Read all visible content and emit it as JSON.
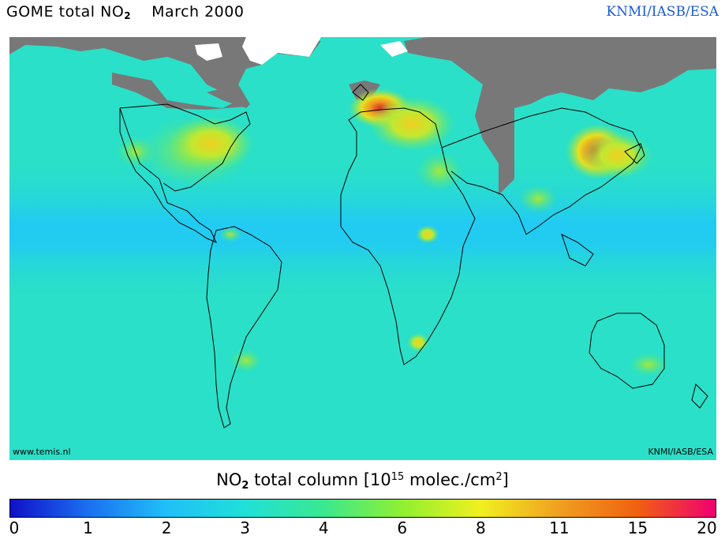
{
  "title": {
    "main_prefix": "GOME total NO",
    "main_sub": "2",
    "month": "March 2000"
  },
  "credit_top": "KNMI/IASB/ESA",
  "watermark": {
    "left": "www.temis.nl",
    "right": "KNMI/IASB/ESA"
  },
  "colorbar": {
    "label_prefix": "NO",
    "label_sub": "2",
    "label_mid": " total column [10",
    "label_sup_exp": "15",
    "label_units": " molec./cm",
    "label_sup_units": "2",
    "label_end": "]",
    "tick_labels": [
      "0",
      "1",
      "2",
      "3",
      "4",
      "6",
      "8",
      "11",
      "15",
      "20"
    ],
    "colors": [
      "#1010c8",
      "#1a70f0",
      "#20c0f8",
      "#20e0d8",
      "#3ae890",
      "#90f030",
      "#f0f020",
      "#f0a020",
      "#f06010",
      "#f00070"
    ]
  },
  "map_colors": {
    "ocean_background": "#2ae0c8",
    "tropical_band": "#20c8f8",
    "no_data": "#787878",
    "land_outline": "#000000",
    "hotspot_high": "#e01818",
    "hotspot_mid": "#f0a020",
    "hotspot_low": "#e8e020"
  }
}
